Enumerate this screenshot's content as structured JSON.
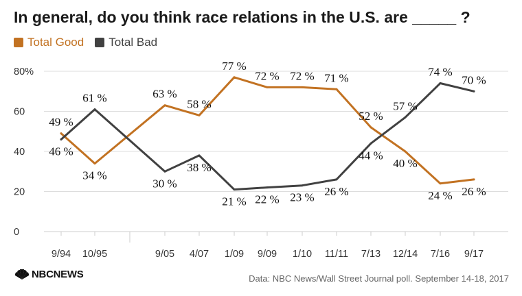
{
  "title": "In general, do you think race relations in the U.S. are _____ ?",
  "source": "Data: NBC News/Wall Street Journal poll. September 14-18, 2017",
  "logo_text": "NBCNEWS",
  "colors": {
    "good": "#c27222",
    "bad": "#414141",
    "grid": "#dddddd"
  },
  "chart_data": {
    "type": "line",
    "title": "In general, do you think race relations in the U.S. are _____ ?",
    "xlabel": "",
    "ylabel": "",
    "categories": [
      "9/94",
      "10/95",
      "9/05",
      "4/07",
      "1/09",
      "9/09",
      "1/10",
      "11/11",
      "7/13",
      "12/14",
      "7/16",
      "9/17"
    ],
    "ylim": [
      0,
      80
    ],
    "y_ticks": [
      "0",
      "20",
      "40",
      "60",
      "80%"
    ],
    "grid": true,
    "legend": "top-left",
    "series": [
      {
        "name": "Total Good",
        "values": [
          49,
          34,
          63,
          58,
          77,
          72,
          72,
          71,
          52,
          40,
          24,
          26
        ],
        "labels": [
          "49 %",
          "34 %",
          "63 %",
          "58 %",
          "77 %",
          "72 %",
          "72 %",
          "71 %",
          "52 %",
          "40 %",
          "24 %",
          "26 %"
        ]
      },
      {
        "name": "Total Bad",
        "values": [
          46,
          61,
          30,
          38,
          21,
          22,
          23,
          26,
          44,
          57,
          74,
          70
        ],
        "labels": [
          "46 %",
          "61 %",
          "30 %",
          "38 %",
          "21 %",
          "22 %",
          "23 %",
          "26 %",
          "44 %",
          "57 %",
          "74 %",
          "70 %"
        ]
      }
    ]
  }
}
